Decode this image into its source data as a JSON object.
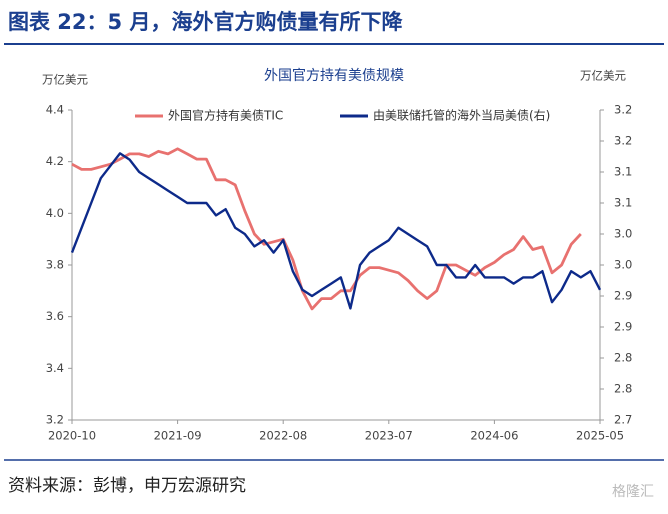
{
  "header": {
    "title": "图表 22：5 月，海外官方购债量有所下降"
  },
  "chart_data": {
    "type": "line",
    "title": "外国官方持有美债规模",
    "y_label": "万亿美元",
    "y2_label": "万亿美元",
    "categories": [
      "2020-10",
      "2020-11",
      "2020-12",
      "2021-01",
      "2021-02",
      "2021-03",
      "2021-04",
      "2021-05",
      "2021-06",
      "2021-07",
      "2021-08",
      "2021-09",
      "2021-10",
      "2021-11",
      "2021-12",
      "2022-01",
      "2022-02",
      "2022-03",
      "2022-04",
      "2022-05",
      "2022-06",
      "2022-07",
      "2022-08",
      "2022-09",
      "2022-10",
      "2022-11",
      "2022-12",
      "2023-01",
      "2023-02",
      "2023-03",
      "2023-04",
      "2023-05",
      "2023-06",
      "2023-07",
      "2023-08",
      "2023-09",
      "2023-10",
      "2023-11",
      "2023-12",
      "2024-01",
      "2024-02",
      "2024-03",
      "2024-04",
      "2024-05",
      "2024-06",
      "2024-07",
      "2024-08",
      "2024-09",
      "2024-10",
      "2024-11",
      "2024-12",
      "2025-01",
      "2025-02",
      "2025-03",
      "2025-04",
      "2025-05"
    ],
    "xticks": [
      "2020-10",
      "2021-09",
      "2022-08",
      "2023-07",
      "2024-06",
      "2025-05"
    ],
    "ylim": [
      3.2,
      4.4
    ],
    "yticks": [
      3.2,
      3.4,
      3.6,
      3.8,
      {
        "value": 4.0,
        "label": "4.0"
      },
      4.2,
      4.4
    ],
    "y2lim": [
      2.7,
      3.2
    ],
    "y2ticks": [
      2.7,
      {
        "value": 2.75,
        "label": "2.8"
      },
      2.8,
      {
        "value": 2.85,
        "label": "2.9"
      },
      2.9,
      {
        "value": 2.95,
        "label": "3.0"
      },
      {
        "value": 3.0,
        "label": "3.0"
      },
      {
        "value": 3.05,
        "label": "3.1"
      },
      3.1,
      {
        "value": 3.15,
        "label": "3.2"
      },
      3.2
    ],
    "legend": "top",
    "series": [
      {
        "name": "外国官方持有美债TIC",
        "color": "#e8716f",
        "values": [
          4.19,
          4.17,
          4.17,
          4.18,
          4.19,
          4.21,
          4.23,
          4.23,
          4.22,
          4.24,
          4.23,
          4.25,
          4.23,
          4.21,
          4.21,
          4.13,
          4.13,
          4.11,
          4.01,
          3.92,
          3.88,
          3.89,
          3.9,
          3.82,
          3.7,
          3.63,
          3.67,
          3.67,
          3.7,
          3.7,
          3.76,
          3.79,
          3.79,
          3.78,
          3.77,
          3.74,
          3.7,
          3.67,
          3.7,
          3.8,
          3.8,
          3.78,
          3.76,
          3.79,
          3.81,
          3.84,
          3.86,
          3.91,
          3.86,
          3.87,
          3.77,
          3.8,
          3.88,
          3.92,
          null,
          null
        ]
      },
      {
        "name": "由美联储托管的海外当局美债(右)",
        "color": "#0d2a8a",
        "axis": "y2",
        "values": [
          2.97,
          3.01,
          3.05,
          3.09,
          3.11,
          3.13,
          3.12,
          3.1,
          3.09,
          3.08,
          3.07,
          3.06,
          3.05,
          3.05,
          3.05,
          3.03,
          3.04,
          3.01,
          3.0,
          2.98,
          2.99,
          2.97,
          2.99,
          2.94,
          2.91,
          2.9,
          2.91,
          2.92,
          2.93,
          2.88,
          2.95,
          2.97,
          2.98,
          2.99,
          3.01,
          3.0,
          2.99,
          2.98,
          2.95,
          2.95,
          2.93,
          2.93,
          2.95,
          2.93,
          2.93,
          2.93,
          2.92,
          2.93,
          2.93,
          2.94,
          2.89,
          2.91,
          2.94,
          2.93,
          2.94,
          2.91
        ]
      }
    ]
  },
  "footer": {
    "source": "资料来源：彭博，申万宏源研究",
    "watermark": "格隆汇"
  }
}
